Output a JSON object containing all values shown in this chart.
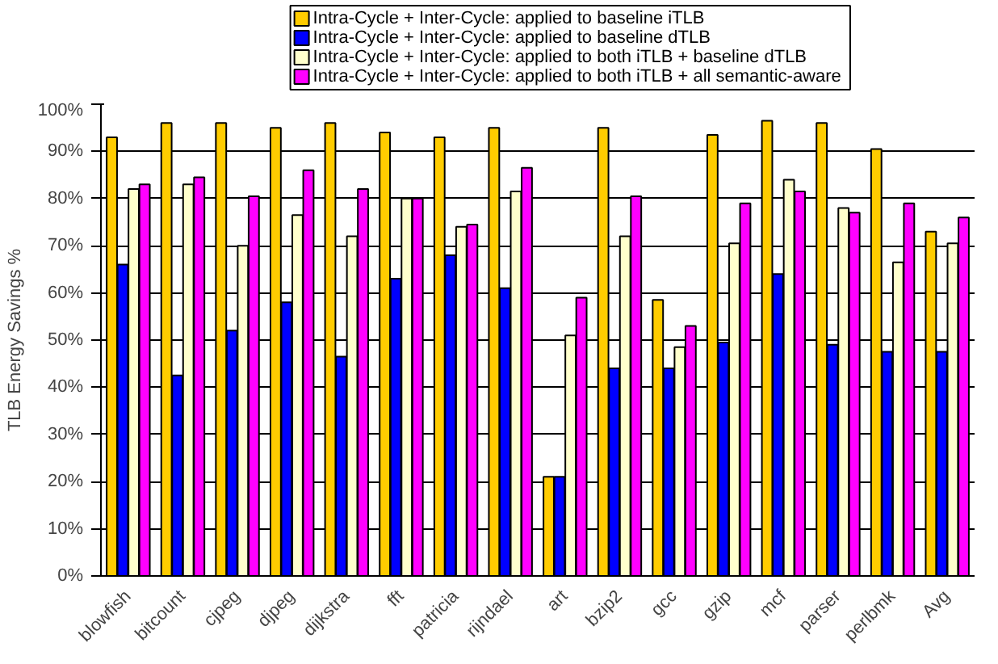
{
  "chart_data": {
    "type": "bar",
    "ylabel": "TLB Energy Savings %",
    "categories": [
      "blowfish",
      "bitcount",
      "cjpeg",
      "djpeg",
      "dijkstra",
      "fft",
      "patricia",
      "rijndael",
      "art",
      "bzip2",
      "gcc",
      "gzip",
      "mcf",
      "parser",
      "perlbmk",
      "Avg"
    ],
    "series": [
      {
        "name": "Intra-Cycle + Inter-Cycle: applied to  baseline iTLB",
        "color": "#ffcc00",
        "values": [
          93,
          96,
          96,
          95,
          96,
          94,
          93,
          95,
          21,
          95,
          58.5,
          93.5,
          96.5,
          96,
          90.5,
          73
        ]
      },
      {
        "name": "Intra-Cycle + Inter-Cycle: applied to  baseline dTLB",
        "color": "#0000ff",
        "values": [
          66,
          42.5,
          52,
          58,
          46.5,
          63,
          68,
          61,
          21,
          44,
          44,
          49.5,
          64,
          49,
          47.5,
          47.5
        ]
      },
      {
        "name": "Intra-Cycle + Inter-Cycle: applied to both iTLB + baseline dTLB",
        "color": "#ffffcc",
        "values": [
          82,
          83,
          70,
          76.5,
          72,
          80,
          74,
          81.5,
          51,
          72,
          48.5,
          70.5,
          84,
          78,
          66.5,
          70.5
        ]
      },
      {
        "name": "Intra-Cycle + Inter-Cycle: applied to both iTLB + all semantic-aware",
        "color": "#ff00ff",
        "values": [
          83,
          84.5,
          80.5,
          86,
          82,
          80,
          74.5,
          86.5,
          59,
          80.5,
          53,
          79,
          81.5,
          77,
          79,
          76
        ]
      }
    ],
    "ylim": [
      0,
      100
    ],
    "yticks": [
      {
        "value": 0,
        "label": "0%"
      },
      {
        "value": 10,
        "label": "10%"
      },
      {
        "value": 20,
        "label": "20%"
      },
      {
        "value": 30,
        "label": "30%"
      },
      {
        "value": 40,
        "label": "40%"
      },
      {
        "value": 50,
        "label": "50%"
      },
      {
        "value": 60,
        "label": "60%"
      },
      {
        "value": 70,
        "label": "70%"
      },
      {
        "value": 80,
        "label": "80%"
      },
      {
        "value": 90,
        "label": "90%"
      },
      {
        "value": 100,
        "label": "100%"
      }
    ],
    "grid": "y",
    "legend": "top"
  }
}
